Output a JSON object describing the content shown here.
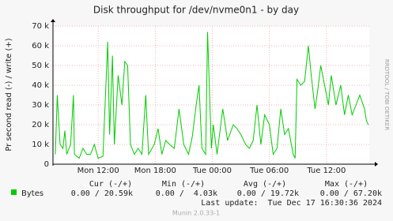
{
  "chart_data": {
    "type": "line",
    "title": "Disk throughput for /dev/nvme0n1 - by day",
    "y_label": "Pr second read (-) / write (+)",
    "watermark": "RRDTOOL / TOBI OETIKER",
    "x": [
      7.5,
      7.7,
      8.0,
      8.3,
      8.5,
      8.7,
      9.1,
      9.4,
      9.5,
      10.0,
      10.4,
      10.8,
      11.2,
      11.6,
      12.0,
      12.5,
      13.0,
      13.2,
      13.5,
      13.7,
      14.1,
      14.5,
      14.8,
      15.1,
      15.4,
      15.8,
      16.2,
      16.6,
      17.0,
      17.3,
      17.9,
      18.3,
      18.7,
      19.1,
      19.5,
      20.0,
      20.5,
      21.0,
      21.5,
      21.9,
      22.3,
      22.6,
      22.9,
      23.3,
      23.5,
      23.9,
      24.1,
      24.5,
      25.1,
      25.6,
      26.2,
      26.6,
      27.0,
      27.5,
      27.9,
      28.3,
      28.7,
      29.1,
      29.5,
      30.0,
      30.4,
      30.8,
      31.2,
      31.6,
      32.0,
      32.5,
      32.7,
      32.9,
      33.3,
      33.7,
      34.1,
      34.4,
      34.8,
      35.1,
      35.4,
      35.8,
      36.2,
      36.5,
      37.0,
      37.5,
      37.9,
      38.3,
      38.7,
      39.1,
      39.5,
      40.0,
      40.2,
      40.4
    ],
    "series": [
      {
        "name": "Bytes",
        "color": "#00cc00",
        "values": [
          5000,
          35000,
          10000,
          8000,
          17000,
          5000,
          10000,
          35000,
          5000,
          3000,
          8000,
          5000,
          5000,
          10000,
          3000,
          4000,
          62000,
          15000,
          55000,
          10000,
          45000,
          30000,
          52000,
          50000,
          10000,
          5000,
          8000,
          5000,
          35000,
          5000,
          10000,
          18000,
          5000,
          12000,
          10000,
          8000,
          28000,
          10000,
          5000,
          14000,
          30000,
          40000,
          8000,
          5000,
          67000,
          8000,
          20000,
          5000,
          28000,
          12000,
          20000,
          18000,
          15000,
          10000,
          8000,
          12000,
          30000,
          10000,
          25000,
          20000,
          5000,
          8000,
          28000,
          15000,
          18000,
          5000,
          3000,
          43000,
          40000,
          42000,
          60000,
          45000,
          28000,
          38000,
          50000,
          40000,
          30000,
          45000,
          30000,
          40000,
          25000,
          35000,
          25000,
          30000,
          35000,
          28000,
          22000,
          20000
        ]
      }
    ],
    "xlim": [
      7.25,
      40.5
    ],
    "xticks": [
      {
        "value": 12,
        "label": "Mon 12:00"
      },
      {
        "value": 18,
        "label": "Mon 18:00"
      },
      {
        "value": 24,
        "label": "Tue 00:00"
      },
      {
        "value": 30,
        "label": "Tue 06:00"
      },
      {
        "value": 36,
        "label": "Tue 12:00"
      }
    ],
    "ylim": [
      0,
      70000
    ],
    "yticks": [
      0,
      {
        "value": 10000,
        "label": "10 k"
      },
      {
        "value": 20000,
        "label": "20 k"
      },
      {
        "value": 30000,
        "label": "30 k"
      },
      {
        "value": 40000,
        "label": "40 k"
      },
      {
        "value": 50000,
        "label": "50 k"
      },
      {
        "value": 60000,
        "label": "60 k"
      },
      {
        "value": 70000,
        "label": "70 k"
      }
    ],
    "grid": true,
    "legend_table": {
      "headers": [
        "Cur (-/+)",
        "Min (-/+)",
        "Avg (-/+)",
        "Max (-/+)"
      ],
      "rows": [
        [
          "0.00 / 20.59k",
          "0.00 /  4.03k",
          "0.00 / 19.72k",
          "0.00 / 67.20k"
        ]
      ]
    },
    "last_update": "Last update:  Tue Dec 17 16:30:36 2024",
    "footer": "Munin 2.0.33-1"
  }
}
